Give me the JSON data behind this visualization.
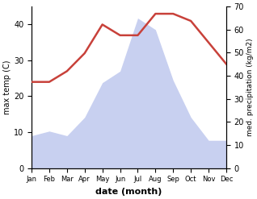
{
  "months": [
    "Jan",
    "Feb",
    "Mar",
    "Apr",
    "May",
    "Jun",
    "Jul",
    "Aug",
    "Sep",
    "Oct",
    "Nov",
    "Dec"
  ],
  "month_positions": [
    1,
    2,
    3,
    4,
    5,
    6,
    7,
    8,
    9,
    10,
    11,
    12
  ],
  "temperature": [
    24,
    24,
    27,
    32,
    40,
    37,
    37,
    43,
    43,
    41,
    35,
    29
  ],
  "precipitation": [
    14,
    16,
    14,
    22,
    37,
    42,
    65,
    60,
    38,
    22,
    12,
    12
  ],
  "temp_color": "#c8413a",
  "precip_fill_color": "#c8d0f0",
  "temp_ylim": [
    0,
    45
  ],
  "precip_ylim": [
    0,
    70
  ],
  "temp_yticks": [
    0,
    10,
    20,
    30,
    40
  ],
  "precip_yticks": [
    0,
    10,
    20,
    30,
    40,
    50,
    60,
    70
  ],
  "ylabel_left": "max temp (C)",
  "ylabel_right": "med. precipitation (kg/m2)",
  "xlabel": "date (month)"
}
